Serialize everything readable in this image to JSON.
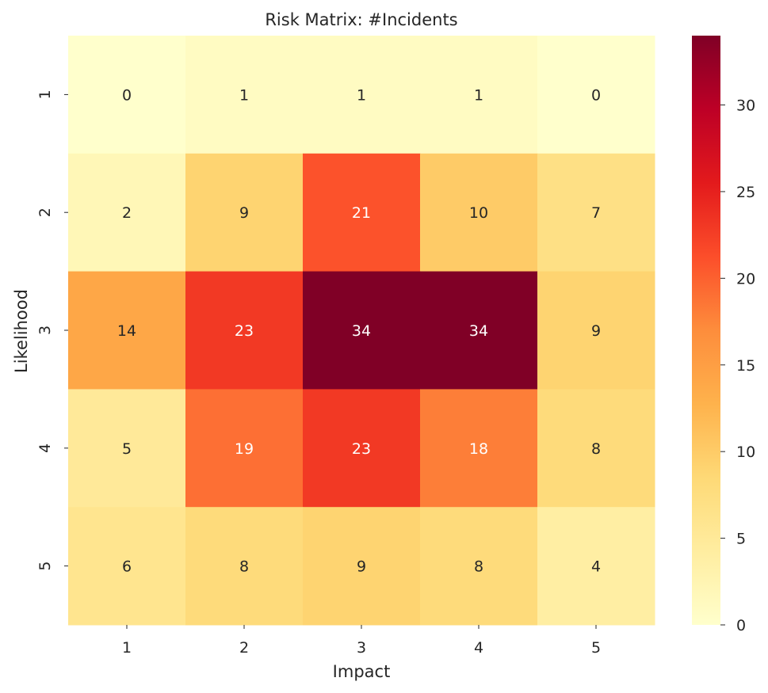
{
  "chart_data": {
    "type": "heatmap",
    "title": "Risk Matrix: #Incidents",
    "xlabel": "Impact",
    "ylabel": "Likelihood",
    "x_categories": [
      "1",
      "2",
      "3",
      "4",
      "5"
    ],
    "y_categories": [
      "1",
      "2",
      "3",
      "4",
      "5"
    ],
    "values": [
      [
        0,
        1,
        1,
        1,
        0
      ],
      [
        2,
        9,
        21,
        10,
        7
      ],
      [
        14,
        23,
        34,
        34,
        9
      ],
      [
        5,
        19,
        23,
        18,
        8
      ],
      [
        6,
        8,
        9,
        8,
        4
      ]
    ],
    "colormap": "YlOrRd",
    "colorbar": {
      "min": 0,
      "max": 34,
      "ticks": [
        0,
        5,
        10,
        15,
        20,
        25,
        30
      ],
      "placement": "right"
    },
    "annotations": true,
    "grid": false
  }
}
